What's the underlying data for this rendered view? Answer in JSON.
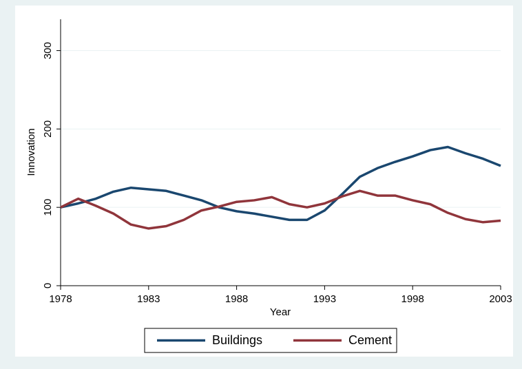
{
  "chart_data": {
    "type": "line",
    "x_label": "Year",
    "y_label": "Innovation",
    "x": [
      1978,
      1979,
      1980,
      1981,
      1982,
      1983,
      1984,
      1985,
      1986,
      1987,
      1988,
      1989,
      1990,
      1991,
      1992,
      1993,
      1994,
      1995,
      1996,
      1997,
      1998,
      1999,
      2000,
      2001,
      2002,
      2003
    ],
    "series": [
      {
        "name": "Buildings",
        "color": "#1a476f",
        "values": [
          100,
          105,
          111,
          120,
          125,
          123,
          121,
          115,
          109,
          100,
          95,
          92,
          88,
          84,
          84,
          96,
          117,
          139,
          150,
          158,
          165,
          173,
          177,
          169,
          162,
          153
        ]
      },
      {
        "name": "Cement",
        "color": "#90353b",
        "values": [
          100,
          111,
          102,
          92,
          78,
          73,
          76,
          84,
          96,
          101,
          107,
          109,
          113,
          104,
          100,
          105,
          114,
          121,
          115,
          115,
          109,
          104,
          93,
          85,
          81,
          83
        ]
      }
    ],
    "xlim": [
      1978,
      2003
    ],
    "xticks": [
      1978,
      1983,
      1988,
      1993,
      1998,
      2003
    ],
    "ylim": [
      0,
      340
    ],
    "yticks": [
      0,
      100,
      200,
      300
    ],
    "grid": true,
    "legend": "bottom"
  }
}
